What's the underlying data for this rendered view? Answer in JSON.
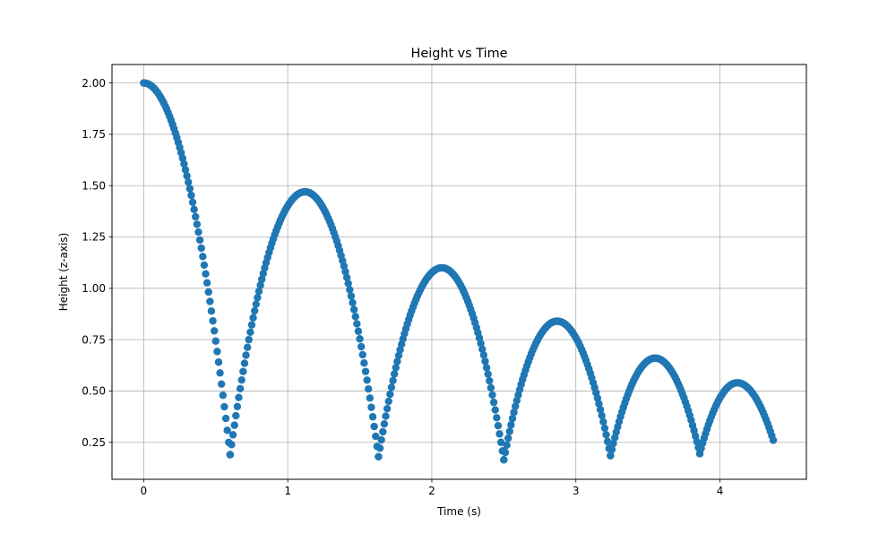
{
  "chart_data": {
    "type": "scatter",
    "title": "Height vs Time",
    "xlabel": "Time (s)",
    "ylabel": "Height (z-axis)",
    "xlim": [
      -0.22,
      4.6
    ],
    "ylim": [
      0.07,
      2.09
    ],
    "x_ticks": [
      0,
      1,
      2,
      3,
      4
    ],
    "x_tick_labels": [
      "0",
      "1",
      "2",
      "3",
      "4"
    ],
    "y_ticks": [
      0.25,
      0.5,
      0.75,
      1.0,
      1.25,
      1.5,
      1.75,
      2.0
    ],
    "y_tick_labels": [
      "0.25",
      "0.50",
      "0.75",
      "1.00",
      "1.25",
      "1.50",
      "1.75",
      "2.00"
    ],
    "grid": true,
    "marker_color": "#1f77b4",
    "series": [
      {
        "segments": [
          {
            "t_start": 0.0,
            "t_end": 0.6,
            "h_start": 2.0,
            "h_end": 0.19,
            "peak_t": 0.0,
            "peak_h": 2.0
          },
          {
            "t_start": 0.6,
            "t_end": 1.63,
            "h_start": 0.19,
            "h_end": 0.18,
            "peak_t": 1.12,
            "peak_h": 1.47
          },
          {
            "t_start": 1.63,
            "t_end": 2.5,
            "h_start": 0.18,
            "h_end": 0.165,
            "peak_t": 2.07,
            "peak_h": 1.1
          },
          {
            "t_start": 2.5,
            "t_end": 3.24,
            "h_start": 0.165,
            "h_end": 0.185,
            "peak_t": 2.87,
            "peak_h": 0.84
          },
          {
            "t_start": 3.24,
            "t_end": 3.86,
            "h_start": 0.185,
            "h_end": 0.195,
            "peak_t": 3.55,
            "peak_h": 0.66
          },
          {
            "t_start": 3.86,
            "t_end": 4.37,
            "h_start": 0.195,
            "h_end": 0.26,
            "peak_t": 4.12,
            "peak_h": 0.54
          }
        ],
        "sample_step": 0.01
      }
    ]
  }
}
